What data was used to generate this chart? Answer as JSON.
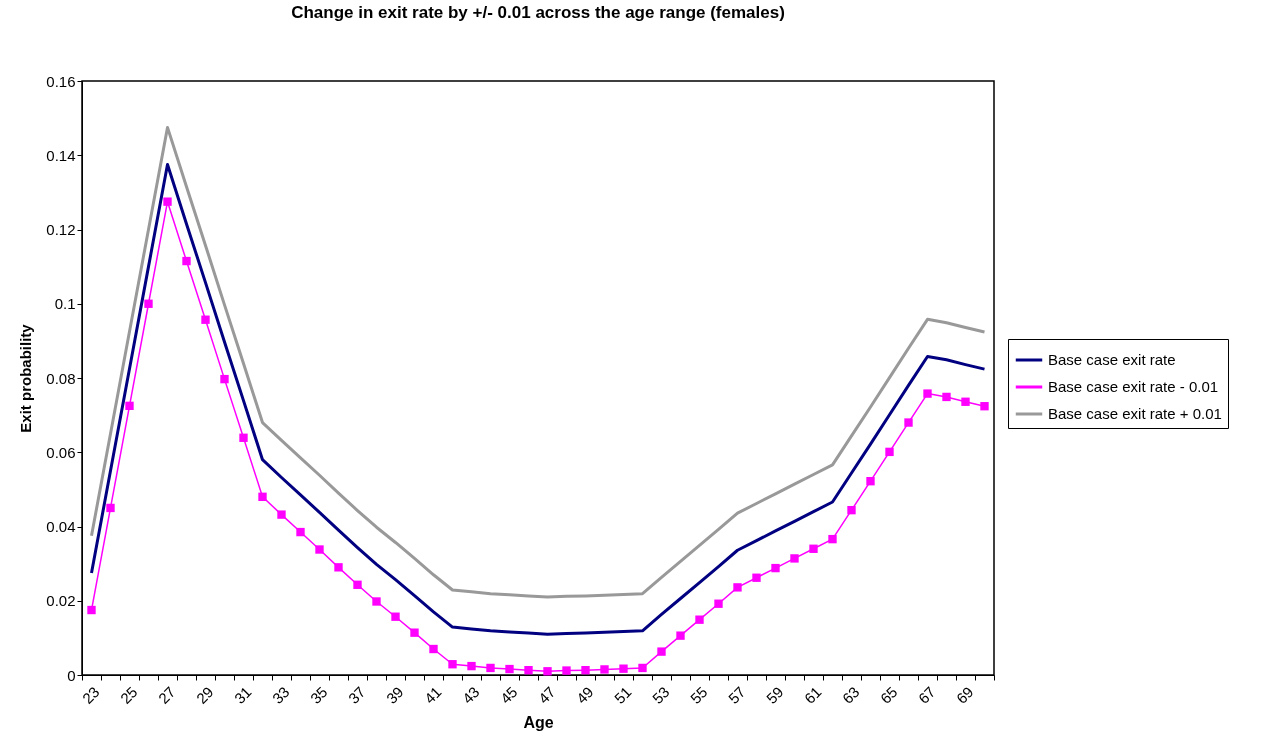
{
  "chart_data": {
    "type": "line",
    "title": "Change in exit rate by +/- 0.01 across the age range (females)",
    "xlabel": "Age",
    "ylabel": "Exit probability",
    "categories": [
      "23",
      null,
      "25",
      null,
      "27",
      null,
      "29",
      null,
      "31",
      null,
      "33",
      null,
      "35",
      null,
      "37",
      null,
      "39",
      null,
      "41",
      null,
      "43",
      null,
      "45",
      null,
      "47",
      null,
      "49",
      null,
      "51",
      null,
      "53",
      null,
      "55",
      null,
      "57",
      null,
      "59",
      null,
      "61",
      null,
      "63",
      null,
      "65",
      null,
      "67",
      null,
      "69",
      null
    ],
    "series": [
      {
        "name": "Base case exit rate",
        "color": "#000080",
        "marker": "none",
        "values": [
          0.0275,
          0.055,
          0.0825,
          0.11,
          0.1375,
          0.1215,
          0.1057,
          0.0897,
          0.0739,
          0.058,
          0.0532,
          0.0485,
          0.0438,
          0.039,
          0.0343,
          0.0298,
          0.0257,
          0.0214,
          0.017,
          0.0129,
          0.0124,
          0.0119,
          0.0116,
          0.0113,
          0.011,
          0.0112,
          0.0113,
          0.0115,
          0.0117,
          0.0119,
          0.0163,
          0.0206,
          0.0249,
          0.0292,
          0.0336,
          0.0362,
          0.0388,
          0.0414,
          0.044,
          0.0466,
          0.0544,
          0.0622,
          0.0701,
          0.078,
          0.0858,
          0.0849,
          0.0836,
          0.0824
        ]
      },
      {
        "name": "Base case exit rate - 0.01",
        "color": "#ff00ff",
        "marker": "square",
        "values": [
          0.0175,
          0.045,
          0.0725,
          0.1,
          0.1275,
          0.1115,
          0.0957,
          0.0797,
          0.0639,
          0.048,
          0.0432,
          0.0385,
          0.0338,
          0.029,
          0.0243,
          0.0198,
          0.0157,
          0.0114,
          0.007,
          0.0029,
          0.0024,
          0.0019,
          0.0016,
          0.0013,
          0.001,
          0.0012,
          0.0013,
          0.0015,
          0.0017,
          0.0019,
          0.0063,
          0.0106,
          0.0149,
          0.0192,
          0.0236,
          0.0262,
          0.0288,
          0.0314,
          0.034,
          0.0366,
          0.0444,
          0.0522,
          0.0601,
          0.068,
          0.0758,
          0.0749,
          0.0736,
          0.0724
        ]
      },
      {
        "name": "Base case exit rate + 0.01",
        "color": "#999999",
        "marker": "none",
        "values": [
          0.0375,
          0.065,
          0.0925,
          0.12,
          0.1475,
          0.1315,
          0.1157,
          0.0997,
          0.0839,
          0.068,
          0.0632,
          0.0585,
          0.0538,
          0.049,
          0.0443,
          0.0398,
          0.0357,
          0.0314,
          0.027,
          0.0229,
          0.0224,
          0.0219,
          0.0216,
          0.0213,
          0.021,
          0.0212,
          0.0213,
          0.0215,
          0.0217,
          0.0219,
          0.0263,
          0.0306,
          0.0349,
          0.0392,
          0.0436,
          0.0462,
          0.0488,
          0.0514,
          0.054,
          0.0566,
          0.0644,
          0.0722,
          0.0801,
          0.088,
          0.0958,
          0.0949,
          0.0936,
          0.0924
        ]
      }
    ],
    "ylim": [
      0,
      0.16
    ],
    "yticks": [
      0,
      0.02,
      0.04,
      0.06,
      0.08,
      0.1,
      0.12,
      0.14,
      0.16
    ],
    "grid": false,
    "legend": "right"
  }
}
